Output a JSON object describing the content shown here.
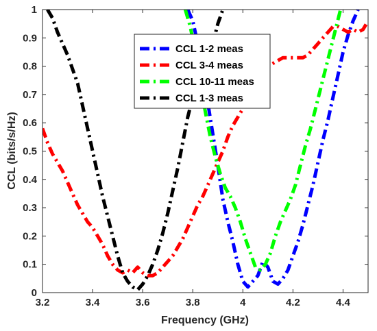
{
  "chart_data": {
    "type": "line",
    "xlabel": "Frequency (GHz)",
    "ylabel": "CCL (bits/s/Hz)",
    "xlim": [
      3.2,
      4.5
    ],
    "ylim": [
      0,
      1
    ],
    "xticks": [
      "3.2",
      "3.4",
      "3.6",
      "3.8",
      "4",
      "4.2",
      "4.4"
    ],
    "yticks": [
      "0",
      "0.1",
      "0.2",
      "0.3",
      "0.4",
      "0.5",
      "0.6",
      "0.7",
      "0.8",
      "0.9",
      "1"
    ],
    "legend_position": "top-center",
    "grid": false,
    "line_style": "dash-dot",
    "series": [
      {
        "name": "CCL 1-2 meas",
        "color": "#0000ff",
        "x": [
          3.78,
          3.8,
          3.82,
          3.84,
          3.86,
          3.88,
          3.9,
          3.92,
          3.94,
          3.96,
          3.98,
          4.0,
          4.02,
          4.04,
          4.06,
          4.08,
          4.1,
          4.12,
          4.14,
          4.16,
          4.18,
          4.2,
          4.22,
          4.24,
          4.26,
          4.28,
          4.3,
          4.32,
          4.34,
          4.36,
          4.38,
          4.4,
          4.42,
          4.44,
          4.46
        ],
        "values": [
          1.0,
          0.96,
          0.88,
          0.78,
          0.67,
          0.56,
          0.45,
          0.33,
          0.25,
          0.18,
          0.1,
          0.04,
          0.02,
          0.04,
          0.06,
          0.11,
          0.09,
          0.04,
          0.03,
          0.05,
          0.08,
          0.13,
          0.18,
          0.24,
          0.31,
          0.38,
          0.46,
          0.54,
          0.61,
          0.69,
          0.77,
          0.85,
          0.91,
          0.96,
          1.0
        ]
      },
      {
        "name": "CCL 3-4 meas",
        "color": "#ff0000",
        "x": [
          3.2,
          3.22,
          3.24,
          3.26,
          3.28,
          3.3,
          3.32,
          3.34,
          3.36,
          3.38,
          3.4,
          3.42,
          3.44,
          3.46,
          3.48,
          3.5,
          3.52,
          3.54,
          3.56,
          3.58,
          3.6,
          3.62,
          3.64,
          3.66,
          3.68,
          3.7,
          3.72,
          3.74,
          3.76,
          3.78,
          3.8,
          3.82,
          3.84,
          3.86,
          3.88,
          3.9,
          3.92,
          3.94,
          3.96,
          3.98,
          4.0,
          4.02,
          4.04,
          4.06,
          4.08,
          4.1,
          4.12,
          4.14,
          4.16,
          4.18,
          4.2,
          4.22,
          4.24,
          4.26,
          4.28,
          4.3,
          4.32,
          4.34,
          4.36,
          4.38,
          4.4,
          4.42,
          4.44,
          4.46,
          4.48,
          4.5
        ],
        "values": [
          0.58,
          0.53,
          0.49,
          0.46,
          0.43,
          0.39,
          0.35,
          0.31,
          0.28,
          0.25,
          0.23,
          0.2,
          0.17,
          0.13,
          0.1,
          0.08,
          0.07,
          0.08,
          0.07,
          0.09,
          0.07,
          0.06,
          0.06,
          0.07,
          0.09,
          0.11,
          0.13,
          0.16,
          0.19,
          0.23,
          0.27,
          0.31,
          0.34,
          0.38,
          0.42,
          0.46,
          0.5,
          0.55,
          0.59,
          0.62,
          0.65,
          0.69,
          0.73,
          0.76,
          0.78,
          0.8,
          0.81,
          0.82,
          0.83,
          0.83,
          0.83,
          0.83,
          0.83,
          0.84,
          0.86,
          0.88,
          0.9,
          0.92,
          0.94,
          0.94,
          0.93,
          0.92,
          0.93,
          0.92,
          0.93,
          0.96
        ]
      },
      {
        "name": "CCL 10-11 meas",
        "color": "#00ff00",
        "x": [
          3.77,
          3.79,
          3.81,
          3.83,
          3.85,
          3.87,
          3.89,
          3.91,
          3.93,
          3.95,
          3.97,
          3.99,
          4.01,
          4.03,
          4.05,
          4.07,
          4.09,
          4.11,
          4.13,
          4.15,
          4.17,
          4.19,
          4.21,
          4.23,
          4.25,
          4.27,
          4.29,
          4.31,
          4.33,
          4.35,
          4.37,
          4.39
        ],
        "values": [
          1.0,
          0.94,
          0.85,
          0.74,
          0.64,
          0.55,
          0.48,
          0.42,
          0.37,
          0.34,
          0.3,
          0.25,
          0.19,
          0.14,
          0.09,
          0.08,
          0.1,
          0.14,
          0.2,
          0.25,
          0.29,
          0.33,
          0.38,
          0.45,
          0.52,
          0.58,
          0.65,
          0.72,
          0.79,
          0.86,
          0.93,
          1.0
        ]
      },
      {
        "name": "CCL 1-3 meas",
        "color": "#000000",
        "x": [
          3.22,
          3.24,
          3.26,
          3.28,
          3.3,
          3.32,
          3.34,
          3.36,
          3.38,
          3.4,
          3.42,
          3.44,
          3.46,
          3.48,
          3.5,
          3.52,
          3.54,
          3.56,
          3.58,
          3.6,
          3.62,
          3.64,
          3.66,
          3.68,
          3.7,
          3.72,
          3.74,
          3.76,
          3.78,
          3.8,
          3.82,
          3.84,
          3.86,
          3.88,
          3.9,
          3.92
        ],
        "values": [
          1.0,
          0.97,
          0.92,
          0.88,
          0.84,
          0.79,
          0.74,
          0.66,
          0.58,
          0.5,
          0.42,
          0.34,
          0.27,
          0.2,
          0.13,
          0.07,
          0.04,
          0.02,
          0.01,
          0.03,
          0.06,
          0.1,
          0.15,
          0.21,
          0.28,
          0.36,
          0.44,
          0.53,
          0.62,
          0.69,
          0.72,
          0.74,
          0.78,
          0.88,
          0.95,
          1.0
        ]
      }
    ]
  }
}
